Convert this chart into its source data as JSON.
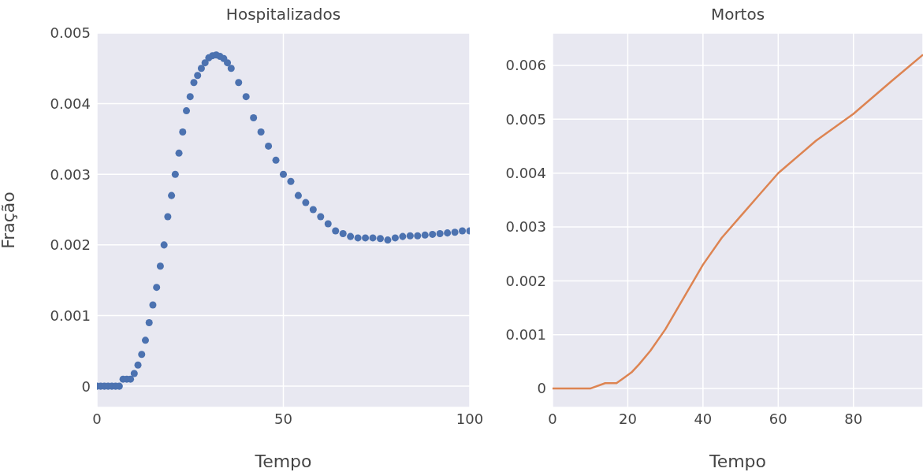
{
  "chart_data": [
    {
      "type": "scatter",
      "title": "Hospitalizados",
      "xlabel": "Tempo",
      "ylabel": "Fração",
      "color": "#4c72b0",
      "marker": "circle",
      "grid": true,
      "xlim": [
        0,
        100
      ],
      "ylim": [
        -0.0003,
        0.005
      ],
      "xticks": [
        0,
        50,
        100
      ],
      "yticks": [
        0,
        0.001,
        0.002,
        0.003,
        0.004,
        0.005
      ],
      "x": [
        0,
        1,
        2,
        3,
        4,
        5,
        6,
        7,
        8,
        9,
        10,
        11,
        12,
        13,
        14,
        15,
        16,
        17,
        18,
        19,
        20,
        21,
        22,
        23,
        24,
        25,
        26,
        27,
        28,
        29,
        30,
        31,
        32,
        33,
        34,
        35,
        36,
        38,
        40,
        42,
        44,
        46,
        48,
        50,
        52,
        54,
        56,
        58,
        60,
        62,
        64,
        66,
        68,
        70,
        72,
        74,
        76,
        78,
        80,
        82,
        84,
        86,
        88,
        90,
        92,
        94,
        96,
        98,
        100
      ],
      "values": [
        0,
        0,
        0,
        0,
        0,
        0,
        0,
        0.0001,
        0.0001,
        0.0001,
        0.00018,
        0.0003,
        0.00045,
        0.00065,
        0.0009,
        0.00115,
        0.0014,
        0.0017,
        0.002,
        0.0024,
        0.0027,
        0.003,
        0.0033,
        0.0036,
        0.0039,
        0.0041,
        0.0043,
        0.0044,
        0.0045,
        0.00458,
        0.00465,
        0.00468,
        0.00469,
        0.00467,
        0.00464,
        0.00458,
        0.0045,
        0.0043,
        0.0041,
        0.0038,
        0.0036,
        0.0034,
        0.0032,
        0.003,
        0.0029,
        0.0027,
        0.0026,
        0.0025,
        0.0024,
        0.0023,
        0.0022,
        0.00216,
        0.00212,
        0.0021,
        0.0021,
        0.0021,
        0.00209,
        0.00207,
        0.0021,
        0.00212,
        0.00213,
        0.00213,
        0.00214,
        0.00215,
        0.00216,
        0.00217,
        0.00218,
        0.0022,
        0.0022
      ]
    },
    {
      "type": "line",
      "title": "Mortos",
      "xlabel": "Tempo",
      "color": "#dd8452",
      "grid": true,
      "xlim": [
        0,
        98.5
      ],
      "ylim": [
        -0.00035,
        0.0066
      ],
      "xticks": [
        0,
        20,
        40,
        60,
        80
      ],
      "yticks": [
        0,
        0.001,
        0.002,
        0.003,
        0.004,
        0.005,
        0.006
      ],
      "x": [
        0,
        10,
        14,
        17,
        19,
        21,
        23,
        26,
        30,
        35,
        40,
        45,
        50,
        55,
        60,
        70,
        80,
        90,
        98.5
      ],
      "values": [
        0,
        0,
        0.0001,
        0.0001,
        0.0002,
        0.0003,
        0.00045,
        0.0007,
        0.0011,
        0.0017,
        0.0023,
        0.0028,
        0.0032,
        0.0036,
        0.004,
        0.0046,
        0.0051,
        0.0057,
        0.0062
      ]
    }
  ]
}
